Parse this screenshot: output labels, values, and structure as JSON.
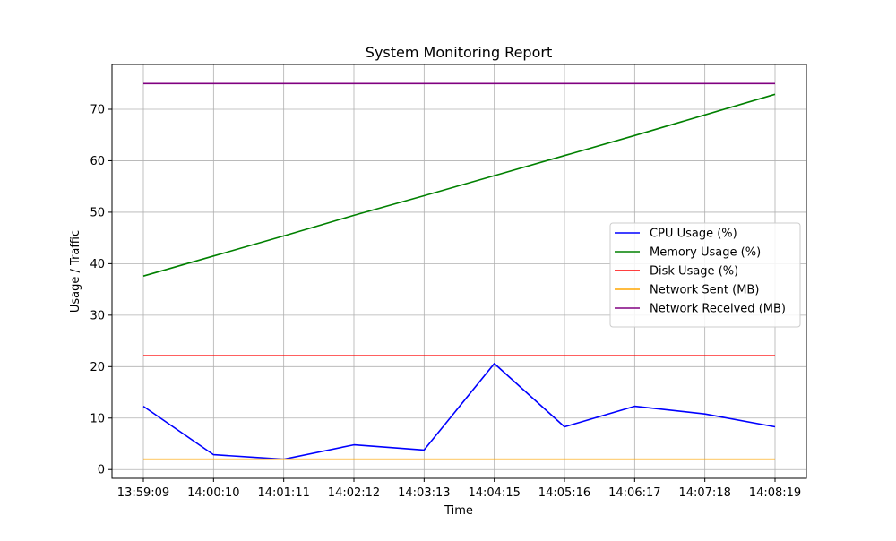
{
  "chart_data": {
    "type": "line",
    "title": "System Monitoring Report",
    "xlabel": "Time",
    "ylabel": "Usage / Traffic",
    "categories": [
      "13:59:09",
      "14:00:10",
      "14:01:11",
      "14:02:12",
      "14:03:13",
      "14:04:15",
      "14:05:16",
      "14:06:17",
      "14:07:18",
      "14:08:19"
    ],
    "yticks": [
      0,
      10,
      20,
      30,
      40,
      50,
      60,
      70
    ],
    "ylim": [
      -1.7,
      78.7
    ],
    "grid": true,
    "legend_position": "center-right",
    "series": [
      {
        "name": "CPU Usage (%)",
        "color": "#0000ff",
        "values": [
          12.3,
          2.9,
          2.0,
          4.8,
          3.8,
          20.6,
          8.3,
          12.3,
          10.8,
          8.3
        ]
      },
      {
        "name": "Memory Usage (%)",
        "color": "#008000",
        "values": [
          37.6,
          41.5,
          45.4,
          49.4,
          53.2,
          57.1,
          61.0,
          64.9,
          68.9,
          72.9
        ]
      },
      {
        "name": "Disk Usage (%)",
        "color": "#ff0000",
        "values": [
          22.1,
          22.1,
          22.1,
          22.1,
          22.1,
          22.1,
          22.1,
          22.1,
          22.1,
          22.1
        ]
      },
      {
        "name": "Network Sent (MB)",
        "color": "#ffa500",
        "values": [
          2.0,
          2.0,
          2.0,
          2.0,
          2.0,
          2.0,
          2.0,
          2.0,
          2.0,
          2.0
        ]
      },
      {
        "name": "Network Received (MB)",
        "color": "#800080",
        "values": [
          75.0,
          75.0,
          75.0,
          75.0,
          75.0,
          75.0,
          75.0,
          75.0,
          75.0,
          75.0
        ]
      }
    ]
  }
}
